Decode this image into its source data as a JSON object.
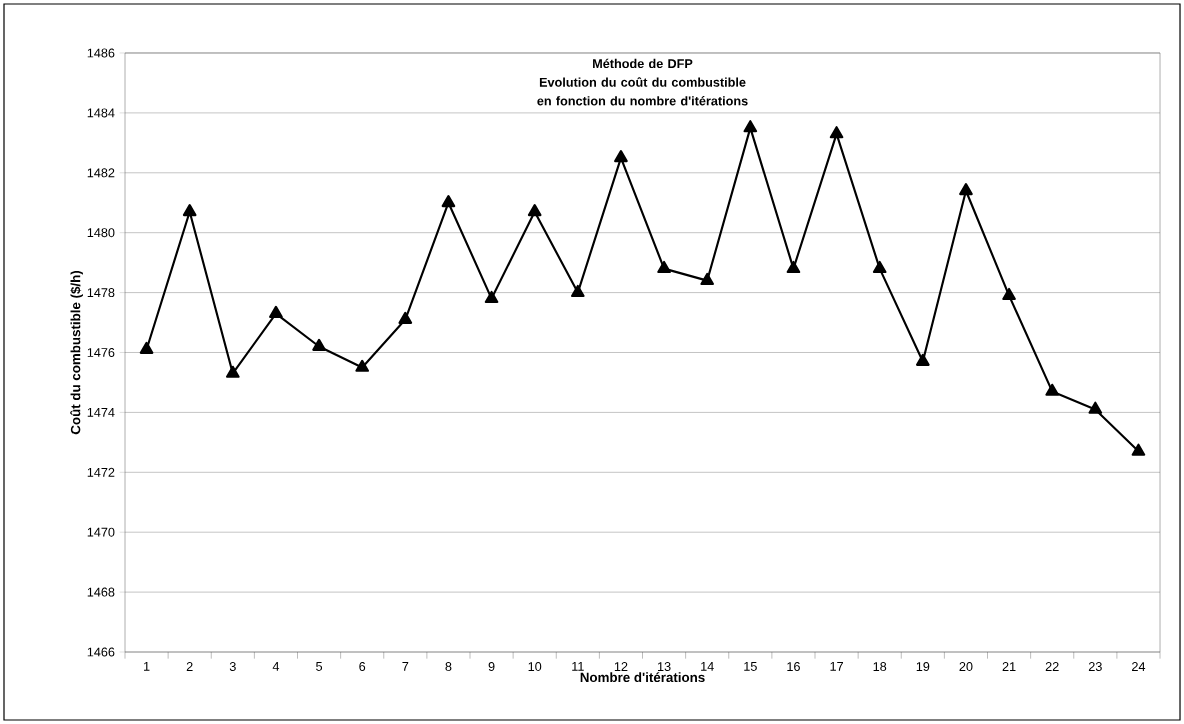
{
  "chart_data": {
    "type": "line",
    "title": "Méthode de DFP\nEvolution du coût du combustible\nen fonction du nombre d'itérations",
    "xlabel": "Nombre d'itérations",
    "ylabel": "Coût du combustible ($/h)",
    "categories": [
      "1",
      "2",
      "3",
      "4",
      "5",
      "6",
      "7",
      "8",
      "9",
      "10",
      "11",
      "12",
      "13",
      "14",
      "15",
      "16",
      "17",
      "18",
      "19",
      "20",
      "21",
      "22",
      "23",
      "24"
    ],
    "series": [
      {
        "color": "#000000",
        "values": [
          1476.1,
          1480.7,
          1475.3,
          1477.3,
          1476.2,
          1475.5,
          1477.1,
          1481.0,
          1477.8,
          1480.7,
          1478.0,
          1482.5,
          1478.8,
          1478.4,
          1483.5,
          1478.8,
          1483.3,
          1478.8,
          1475.7,
          1481.4,
          1477.9,
          1474.7,
          1474.1,
          1472.7
        ]
      }
    ],
    "ylim": [
      1466,
      1486
    ],
    "yticks": [
      1466,
      1468,
      1470,
      1472,
      1474,
      1476,
      1478,
      1480,
      1482,
      1484,
      1486
    ],
    "grid": "y",
    "marker": "triangle",
    "line_style": "solid"
  }
}
